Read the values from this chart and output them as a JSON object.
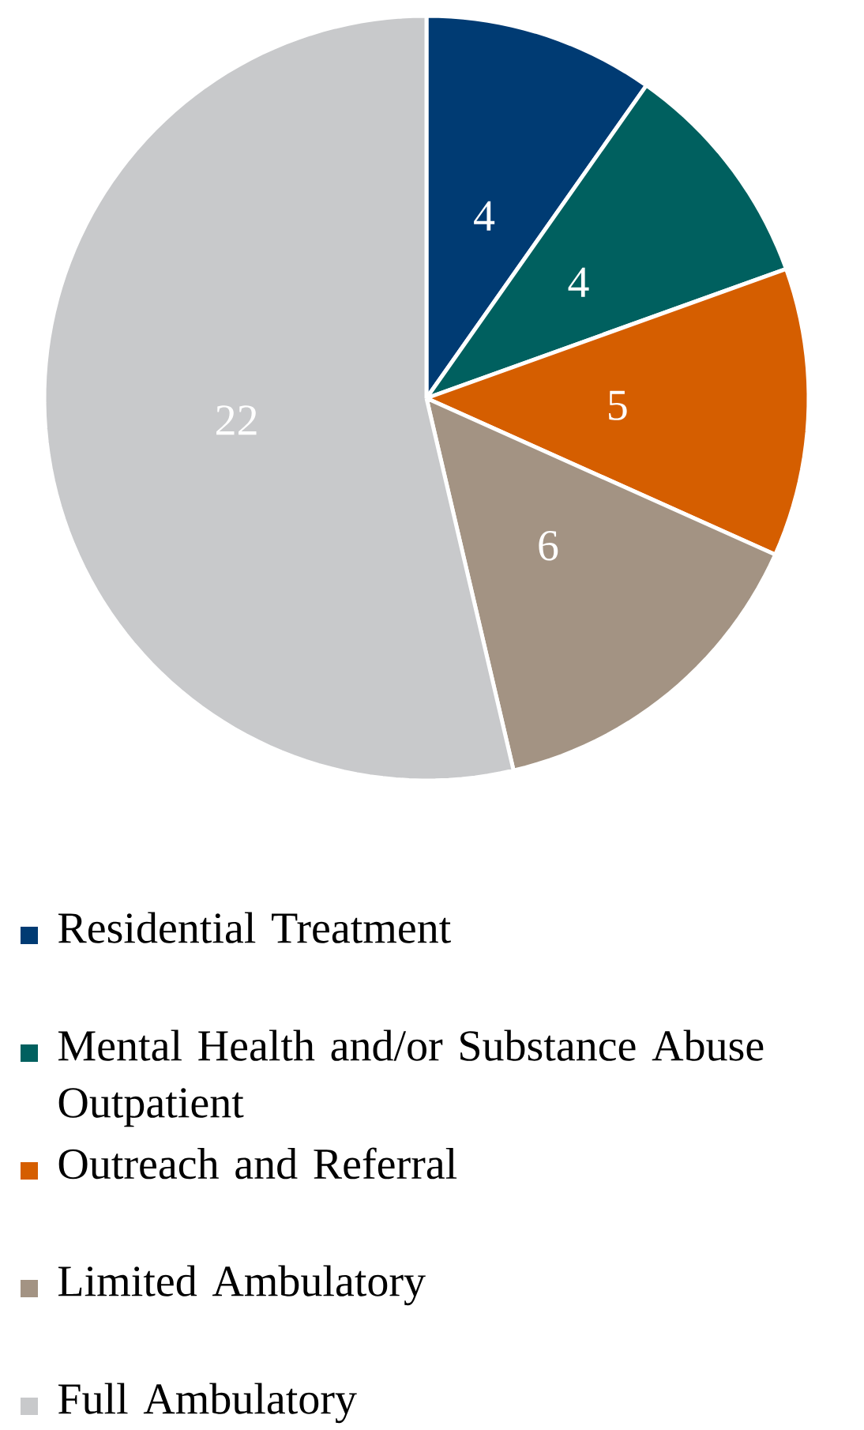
{
  "chart_data": {
    "type": "pie",
    "categories": [
      "Residential Treatment",
      "Mental Health and/or Substance Abuse Outpatient",
      "Outreach and Referral",
      "Limited Ambulatory",
      "Full Ambulatory"
    ],
    "values": [
      4,
      4,
      5,
      6,
      22
    ],
    "colors": [
      "#003b73",
      "#00605f",
      "#d55e00",
      "#a39383",
      "#c8c9cb"
    ],
    "data_labels": true,
    "legend": "bottom"
  }
}
